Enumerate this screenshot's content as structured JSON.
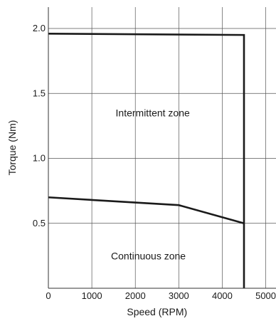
{
  "chart_data": {
    "type": "line",
    "title": "",
    "xlabel": "Speed (RPM)",
    "ylabel": "Torque (Nm)",
    "xlim": [
      0,
      5000
    ],
    "ylim": [
      0,
      2.0
    ],
    "x_ticks": [
      0,
      1000,
      2000,
      3000,
      4000,
      5000
    ],
    "x_tick_labels": [
      "0",
      "1000",
      "2000",
      "3000",
      "4000",
      "5000"
    ],
    "y_ticks": [
      0.5,
      1.0,
      1.5,
      2.0
    ],
    "y_tick_labels": [
      "0.5",
      "1.0",
      "1.5",
      "2.0"
    ],
    "grid": true,
    "series": [
      {
        "x": [
          0,
          4500,
          4500
        ],
        "y": [
          1.96,
          1.95,
          0
        ],
        "color": "#1a1a1a"
      },
      {
        "x": [
          0,
          3000,
          4500
        ],
        "y": [
          0.7,
          0.64,
          0.5
        ],
        "color": "#1a1a1a"
      }
    ],
    "annotations": [
      {
        "text": "Intermittent zone",
        "x": 2400,
        "y": 1.35
      },
      {
        "text": "Continuous  zone",
        "x": 2300,
        "y": 0.25
      }
    ]
  }
}
